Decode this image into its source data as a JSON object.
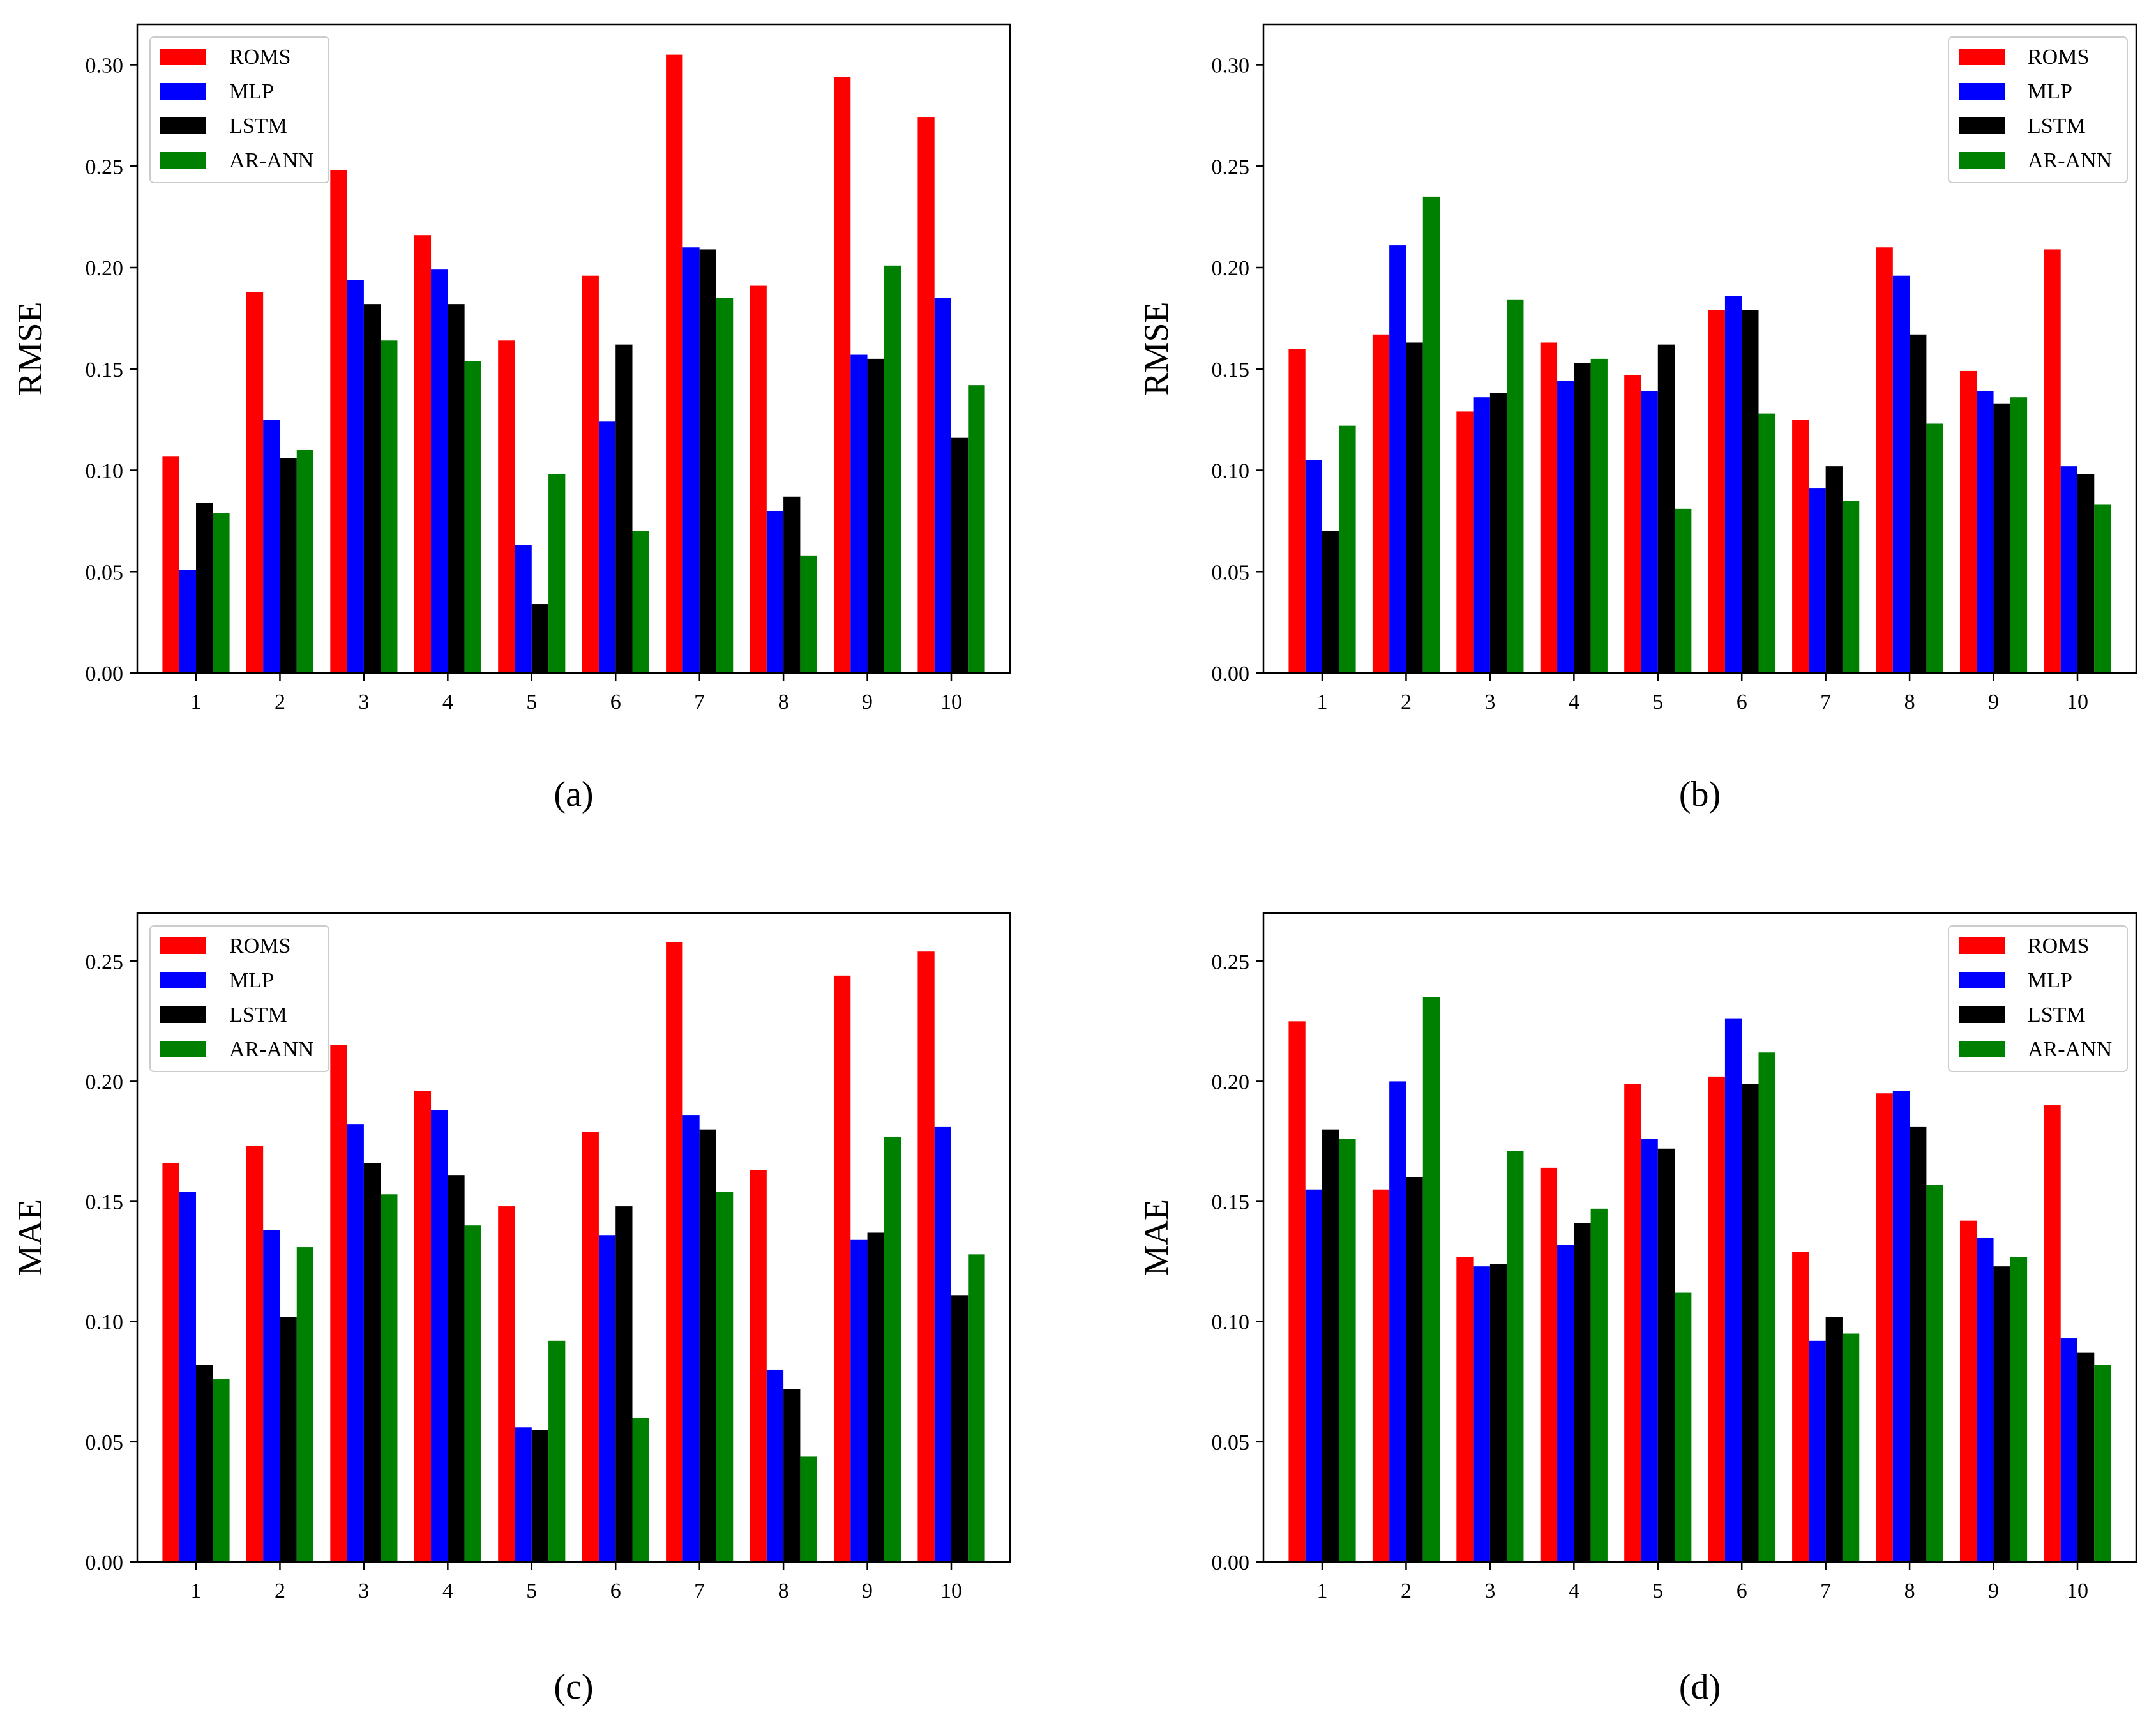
{
  "colors": {
    "ROMS": "#ff0000",
    "MLP": "#0000ff",
    "LSTM": "#000000",
    "AR-ANN": "#008000"
  },
  "legend_labels": [
    "ROMS",
    "MLP",
    "LSTM",
    "AR-ANN"
  ],
  "chart_data": [
    {
      "type": "bar",
      "panel_label": "(a)",
      "ylabel": "RMSE",
      "xlabel": "",
      "categories": [
        "1",
        "2",
        "3",
        "4",
        "5",
        "6",
        "7",
        "8",
        "9",
        "10"
      ],
      "ylim": [
        0,
        0.32
      ],
      "yticks": [
        "0.00",
        "0.05",
        "0.10",
        "0.15",
        "0.20",
        "0.25",
        "0.30"
      ],
      "legend_position": "top-left",
      "series": [
        {
          "name": "ROMS",
          "values": [
            0.107,
            0.188,
            0.248,
            0.216,
            0.164,
            0.196,
            0.305,
            0.191,
            0.294,
            0.274
          ]
        },
        {
          "name": "MLP",
          "values": [
            0.051,
            0.125,
            0.194,
            0.199,
            0.063,
            0.124,
            0.21,
            0.08,
            0.157,
            0.185
          ]
        },
        {
          "name": "LSTM",
          "values": [
            0.084,
            0.106,
            0.182,
            0.182,
            0.034,
            0.162,
            0.209,
            0.087,
            0.155,
            0.116
          ]
        },
        {
          "name": "AR-ANN",
          "values": [
            0.079,
            0.11,
            0.164,
            0.154,
            0.098,
            0.07,
            0.185,
            0.058,
            0.201,
            0.142
          ]
        }
      ]
    },
    {
      "type": "bar",
      "panel_label": "(b)",
      "ylabel": "RMSE",
      "xlabel": "",
      "categories": [
        "1",
        "2",
        "3",
        "4",
        "5",
        "6",
        "7",
        "8",
        "9",
        "10"
      ],
      "ylim": [
        0,
        0.32
      ],
      "yticks": [
        "0.00",
        "0.05",
        "0.10",
        "0.15",
        "0.20",
        "0.25",
        "0.30"
      ],
      "legend_position": "top-right",
      "series": [
        {
          "name": "ROMS",
          "values": [
            0.16,
            0.167,
            0.129,
            0.163,
            0.147,
            0.179,
            0.125,
            0.21,
            0.149,
            0.209
          ]
        },
        {
          "name": "MLP",
          "values": [
            0.105,
            0.211,
            0.136,
            0.144,
            0.139,
            0.186,
            0.091,
            0.196,
            0.139,
            0.102
          ]
        },
        {
          "name": "LSTM",
          "values": [
            0.07,
            0.163,
            0.138,
            0.153,
            0.162,
            0.179,
            0.102,
            0.167,
            0.133,
            0.098
          ]
        },
        {
          "name": "AR-ANN",
          "values": [
            0.122,
            0.235,
            0.184,
            0.155,
            0.081,
            0.128,
            0.085,
            0.123,
            0.136,
            0.083
          ]
        }
      ]
    },
    {
      "type": "bar",
      "panel_label": "(c)",
      "ylabel": "MAE",
      "xlabel": "",
      "categories": [
        "1",
        "2",
        "3",
        "4",
        "5",
        "6",
        "7",
        "8",
        "9",
        "10"
      ],
      "ylim": [
        0,
        0.27
      ],
      "yticks": [
        "0.00",
        "0.05",
        "0.10",
        "0.15",
        "0.20",
        "0.25"
      ],
      "legend_position": "top-left",
      "series": [
        {
          "name": "ROMS",
          "values": [
            0.166,
            0.173,
            0.215,
            0.196,
            0.148,
            0.179,
            0.258,
            0.163,
            0.244,
            0.254
          ]
        },
        {
          "name": "MLP",
          "values": [
            0.154,
            0.138,
            0.182,
            0.188,
            0.056,
            0.136,
            0.186,
            0.08,
            0.134,
            0.181
          ]
        },
        {
          "name": "LSTM",
          "values": [
            0.082,
            0.102,
            0.166,
            0.161,
            0.055,
            0.148,
            0.18,
            0.072,
            0.137,
            0.111
          ]
        },
        {
          "name": "AR-ANN",
          "values": [
            0.076,
            0.131,
            0.153,
            0.14,
            0.092,
            0.06,
            0.154,
            0.044,
            0.177,
            0.128
          ]
        }
      ]
    },
    {
      "type": "bar",
      "panel_label": "(d)",
      "ylabel": "MAE",
      "xlabel": "",
      "categories": [
        "1",
        "2",
        "3",
        "4",
        "5",
        "6",
        "7",
        "8",
        "9",
        "10"
      ],
      "ylim": [
        0,
        0.27
      ],
      "yticks": [
        "0.00",
        "0.05",
        "0.10",
        "0.15",
        "0.20",
        "0.25"
      ],
      "legend_position": "top-right",
      "series": [
        {
          "name": "ROMS",
          "values": [
            0.225,
            0.155,
            0.127,
            0.164,
            0.199,
            0.202,
            0.129,
            0.195,
            0.142,
            0.19
          ]
        },
        {
          "name": "MLP",
          "values": [
            0.155,
            0.2,
            0.123,
            0.132,
            0.176,
            0.226,
            0.092,
            0.196,
            0.135,
            0.093
          ]
        },
        {
          "name": "LSTM",
          "values": [
            0.18,
            0.16,
            0.124,
            0.141,
            0.172,
            0.199,
            0.102,
            0.181,
            0.123,
            0.087
          ]
        },
        {
          "name": "AR-ANN",
          "values": [
            0.176,
            0.235,
            0.171,
            0.147,
            0.112,
            0.212,
            0.095,
            0.157,
            0.127,
            0.082
          ]
        }
      ]
    }
  ]
}
